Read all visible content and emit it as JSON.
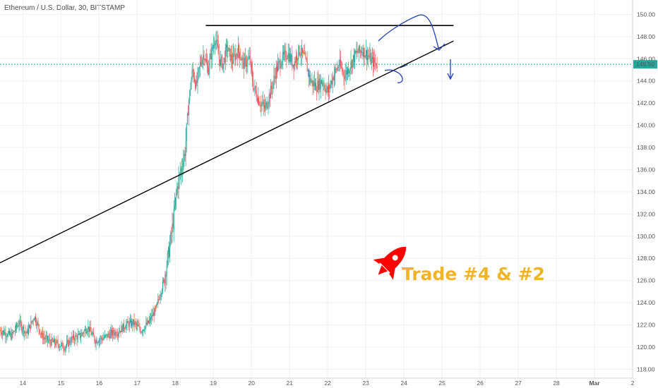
{
  "chart_data": {
    "type": "candlestick",
    "title": "Ethereum / U.S. Dollar, 30, BITSTAMP",
    "y_ticks": [
      "118.00",
      "120.00",
      "122.00",
      "124.00",
      "126.00",
      "128.00",
      "130.00",
      "132.00",
      "134.00",
      "136.00",
      "138.00",
      "140.00",
      "142.00",
      "144.00",
      "146.00",
      "148.00",
      "150.00"
    ],
    "ylim": [
      117.2,
      151.3
    ],
    "x_ticks": [
      "14",
      "15",
      "16",
      "17",
      "18",
      "19",
      "20",
      "21",
      "22",
      "23",
      "24",
      "25",
      "26",
      "27",
      "28",
      "Mar",
      "2"
    ],
    "x_tick_pos": [
      14,
      15,
      16,
      17,
      18,
      19,
      20,
      21,
      22,
      23,
      24,
      25,
      26,
      27,
      28,
      29,
      30
    ],
    "xlim": [
      13.4,
      30.0
    ],
    "last_price": "145.50",
    "last_price_value": 145.5,
    "grid": true,
    "colors": {
      "up": "#26a69a",
      "down": "#ef5350",
      "price_line": "#26a69a",
      "annotation": "#1e3fb8",
      "rocket": "#ff0000",
      "label": "#f0b429",
      "trendline": "#000000"
    },
    "price_path": [
      [
        13.4,
        121.5
      ],
      [
        13.7,
        121.0
      ],
      [
        13.9,
        122.2
      ],
      [
        14.1,
        121.2
      ],
      [
        14.3,
        122.8
      ],
      [
        14.5,
        121.0
      ],
      [
        14.7,
        120.5
      ],
      [
        14.9,
        120.3
      ],
      [
        15.1,
        120.0
      ],
      [
        15.3,
        120.8
      ],
      [
        15.5,
        121.0
      ],
      [
        15.7,
        121.8
      ],
      [
        15.9,
        120.6
      ],
      [
        16.1,
        120.8
      ],
      [
        16.3,
        121.2
      ],
      [
        16.5,
        121.4
      ],
      [
        16.7,
        122.0
      ],
      [
        16.9,
        122.2
      ],
      [
        17.1,
        121.5
      ],
      [
        17.3,
        122.2
      ],
      [
        17.5,
        123.5
      ],
      [
        17.7,
        126.0
      ],
      [
        17.85,
        129.0
      ],
      [
        17.95,
        131.5
      ],
      [
        18.05,
        134.5
      ],
      [
        18.15,
        136.0
      ],
      [
        18.25,
        137.5
      ],
      [
        18.35,
        142.0
      ],
      [
        18.45,
        145.0
      ],
      [
        18.55,
        143.5
      ],
      [
        18.65,
        145.5
      ],
      [
        18.75,
        146.5
      ],
      [
        18.85,
        145.0
      ],
      [
        18.95,
        146.5
      ],
      [
        19.05,
        148.0
      ],
      [
        19.15,
        146.0
      ],
      [
        19.25,
        145.5
      ],
      [
        19.35,
        147.0
      ],
      [
        19.5,
        145.8
      ],
      [
        19.65,
        146.8
      ],
      [
        19.8,
        145.5
      ],
      [
        19.95,
        146.0
      ],
      [
        20.05,
        143.5
      ],
      [
        20.2,
        142.2
      ],
      [
        20.35,
        141.5
      ],
      [
        20.5,
        143.0
      ],
      [
        20.65,
        145.0
      ],
      [
        20.8,
        146.0
      ],
      [
        20.95,
        146.5
      ],
      [
        21.1,
        145.5
      ],
      [
        21.25,
        146.8
      ],
      [
        21.4,
        146.0
      ],
      [
        21.55,
        144.0
      ],
      [
        21.7,
        143.5
      ],
      [
        21.85,
        144.0
      ],
      [
        22.0,
        143.0
      ],
      [
        22.15,
        144.5
      ],
      [
        22.3,
        145.5
      ],
      [
        22.45,
        144.5
      ],
      [
        22.6,
        145.5
      ],
      [
        22.75,
        146.5
      ],
      [
        22.9,
        146.8
      ],
      [
        23.05,
        146.3
      ],
      [
        23.15,
        145.8
      ],
      [
        23.3,
        145.5
      ]
    ],
    "resistance_line": {
      "from": [
        18.8,
        149.0
      ],
      "to": [
        25.3,
        149.0
      ]
    },
    "support_line": {
      "from": [
        13.4,
        127.6
      ],
      "to": [
        25.3,
        147.6
      ]
    },
    "annotation_label": "Trade #4 & #2"
  }
}
